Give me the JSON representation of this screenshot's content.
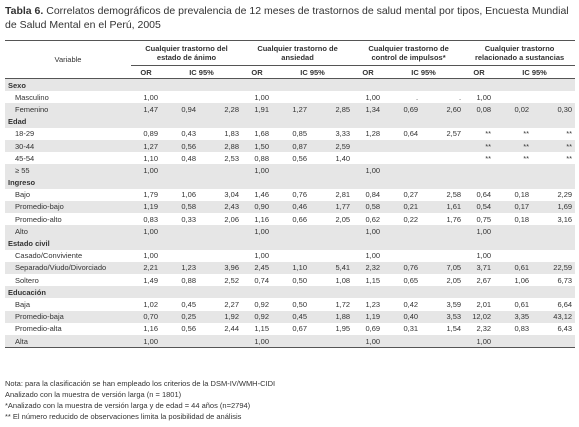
{
  "title_prefix": "Tabla 6.",
  "title": "Correlatos demográficos de prevalencia de 12 meses de trastornos de salud mental por tipos, Encuesta Mundial de Salud Mental en el Perú, 2005",
  "table": {
    "variable_header": "Variable",
    "groups": [
      "Cualquier trastorno del estado de ánimo",
      "Cualquier trastorno de ansiedad",
      "Cualquier trastorno de control de impulsos*",
      "Cualquier trastorno relacionado a sustancias"
    ],
    "or_label": "OR",
    "ic_label": "IC 95%",
    "sections": [
      {
        "name": "Sexo",
        "rows": [
          {
            "label": "Masculino",
            "cells": [
              "1,00",
              null,
              null,
              "1,00",
              null,
              null,
              "1,00",
              ".",
              ".",
              "1,00",
              null,
              null
            ]
          },
          {
            "label": "Femenino",
            "cells": [
              "1,47",
              "0,94",
              "2,28",
              "1,91",
              "1,27",
              "2,85",
              "1,34",
              "0,69",
              "2,60",
              "0,08",
              "0,02",
              "0,30"
            ]
          }
        ]
      },
      {
        "name": "Edad",
        "rows": [
          {
            "label": "18-29",
            "cells": [
              "0,89",
              "0,43",
              "1,83",
              "1,68",
              "0,85",
              "3,33",
              "1,28",
              "0,64",
              "2,57",
              "**",
              "**",
              "**"
            ]
          },
          {
            "label": "30-44",
            "cells": [
              "1,27",
              "0,56",
              "2,88",
              "1,50",
              "0,87",
              "2,59",
              null,
              null,
              null,
              "**",
              "**",
              "**"
            ]
          },
          {
            "label": "45-54",
            "cells": [
              "1,10",
              "0,48",
              "2,53",
              "0,88",
              "0,56",
              "1,40",
              null,
              null,
              null,
              "**",
              "**",
              "**"
            ]
          },
          {
            "label": "≥ 55",
            "cells": [
              "1,00",
              null,
              null,
              "1,00",
              null,
              null,
              "1,00",
              null,
              null,
              null,
              null,
              null
            ]
          }
        ]
      },
      {
        "name": "Ingreso",
        "rows": [
          {
            "label": "Bajo",
            "cells": [
              "1,79",
              "1,06",
              "3,04",
              "1,46",
              "0,76",
              "2,81",
              "0,84",
              "0,27",
              "2,58",
              "0,64",
              "0,18",
              "2,29"
            ]
          },
          {
            "label": "Promedio-bajo",
            "cells": [
              "1,19",
              "0,58",
              "2,43",
              "0,90",
              "0,46",
              "1,77",
              "0,58",
              "0,21",
              "1,61",
              "0,54",
              "0,17",
              "1,69"
            ]
          },
          {
            "label": "Promedio-alto",
            "cells": [
              "0,83",
              "0,33",
              "2,06",
              "1,16",
              "0,66",
              "2,05",
              "0,62",
              "0,22",
              "1,76",
              "0,75",
              "0,18",
              "3,16"
            ]
          },
          {
            "label": "Alto",
            "cells": [
              "1,00",
              null,
              null,
              "1,00",
              null,
              null,
              "1,00",
              null,
              null,
              "1,00",
              null,
              null
            ]
          }
        ]
      },
      {
        "name": "Estado civil",
        "rows": [
          {
            "label": "Casado/Conviviente",
            "cells": [
              "1,00",
              null,
              null,
              "1,00",
              null,
              null,
              "1,00",
              null,
              null,
              "1,00",
              null,
              null
            ]
          },
          {
            "label": "Separado/Viudo/Divorciado",
            "cells": [
              "2,21",
              "1,23",
              "3,96",
              "2,45",
              "1,10",
              "5,41",
              "2,32",
              "0,76",
              "7,05",
              "3,71",
              "0,61",
              "22,59"
            ]
          },
          {
            "label": "Soltero",
            "cells": [
              "1,49",
              "0,88",
              "2,52",
              "0,74",
              "0,50",
              "1,08",
              "1,15",
              "0,65",
              "2,05",
              "2,67",
              "1,06",
              "6,73"
            ]
          }
        ]
      },
      {
        "name": "Educación",
        "rows": [
          {
            "label": "Baja",
            "cells": [
              "1,02",
              "0,45",
              "2,27",
              "0,92",
              "0,50",
              "1,72",
              "1,23",
              "0,42",
              "3,59",
              "2,01",
              "0,61",
              "6,64"
            ]
          },
          {
            "label": "Promedio-baja",
            "cells": [
              "0,70",
              "0,25",
              "1,92",
              "0,92",
              "0,45",
              "1,88",
              "1,19",
              "0,40",
              "3,53",
              "12,02",
              "3,35",
              "43,12"
            ]
          },
          {
            "label": "Promedio-alta",
            "cells": [
              "1,16",
              "0,56",
              "2,44",
              "1,15",
              "0,67",
              "1,95",
              "0,69",
              "0,31",
              "1,54",
              "2,32",
              "0,83",
              "6,43"
            ]
          },
          {
            "label": "Alta",
            "cells": [
              "1,00",
              null,
              null,
              "1,00",
              null,
              null,
              "1,00",
              null,
              null,
              "1,00",
              null,
              null
            ]
          }
        ]
      }
    ]
  },
  "notes": [
    "Nota: para la clasificación se han empleado los criterios de la DSM-IV/WMH-CIDI",
    "Analizado con la muestra de versión larga (n = 1801)",
    "*Analizado con la muestra de versión larga y de edad = 44 años (n=2794)",
    "** El número reducido de observaciones limita la posibilidad de análisis"
  ]
}
